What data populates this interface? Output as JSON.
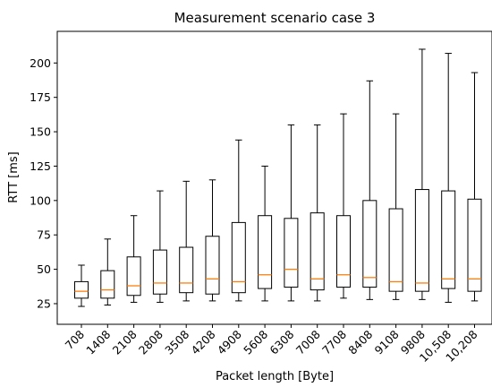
{
  "chart_data": {
    "type": "box",
    "title": "Measurement scenario case 3",
    "xlabel": "Packet length [Byte]",
    "ylabel": "RTT [ms]",
    "ylim": [
      10,
      223
    ],
    "yticks": [
      25,
      50,
      75,
      100,
      125,
      150,
      175,
      200
    ],
    "categories": [
      "708",
      "1408",
      "2108",
      "2808",
      "3508",
      "4208",
      "4908",
      "5608",
      "6308",
      "7008",
      "7708",
      "8408",
      "9108",
      "9808",
      "10,508",
      "10,208"
    ],
    "grid": false,
    "colors": {
      "box": "#000000",
      "median": "#ff7f0e"
    },
    "boxes": [
      {
        "whisker_low": 23,
        "q1": 29,
        "median": 34,
        "q3": 41,
        "whisker_high": 53
      },
      {
        "whisker_low": 24,
        "q1": 29,
        "median": 35,
        "q3": 49,
        "whisker_high": 72
      },
      {
        "whisker_low": 26,
        "q1": 31,
        "median": 38,
        "q3": 59,
        "whisker_high": 89
      },
      {
        "whisker_low": 26,
        "q1": 32,
        "median": 40,
        "q3": 64,
        "whisker_high": 107
      },
      {
        "whisker_low": 27,
        "q1": 33,
        "median": 40,
        "q3": 66,
        "whisker_high": 114
      },
      {
        "whisker_low": 27,
        "q1": 32,
        "median": 43,
        "q3": 74,
        "whisker_high": 115
      },
      {
        "whisker_low": 27,
        "q1": 33,
        "median": 41,
        "q3": 84,
        "whisker_high": 144
      },
      {
        "whisker_low": 27,
        "q1": 36,
        "median": 46,
        "q3": 89,
        "whisker_high": 125
      },
      {
        "whisker_low": 27,
        "q1": 37,
        "median": 50,
        "q3": 87,
        "whisker_high": 155
      },
      {
        "whisker_low": 27,
        "q1": 35,
        "median": 43,
        "q3": 91,
        "whisker_high": 155
      },
      {
        "whisker_low": 29,
        "q1": 37,
        "median": 46,
        "q3": 89,
        "whisker_high": 163
      },
      {
        "whisker_low": 28,
        "q1": 37,
        "median": 44,
        "q3": 100,
        "whisker_high": 187
      },
      {
        "whisker_low": 28,
        "q1": 34,
        "median": 41,
        "q3": 94,
        "whisker_high": 163
      },
      {
        "whisker_low": 28,
        "q1": 34,
        "median": 40,
        "q3": 108,
        "whisker_high": 210
      },
      {
        "whisker_low": 26,
        "q1": 36,
        "median": 43,
        "q3": 107,
        "whisker_high": 207
      },
      {
        "whisker_low": 27,
        "q1": 34,
        "median": 43,
        "q3": 101,
        "whisker_high": 193
      }
    ]
  }
}
